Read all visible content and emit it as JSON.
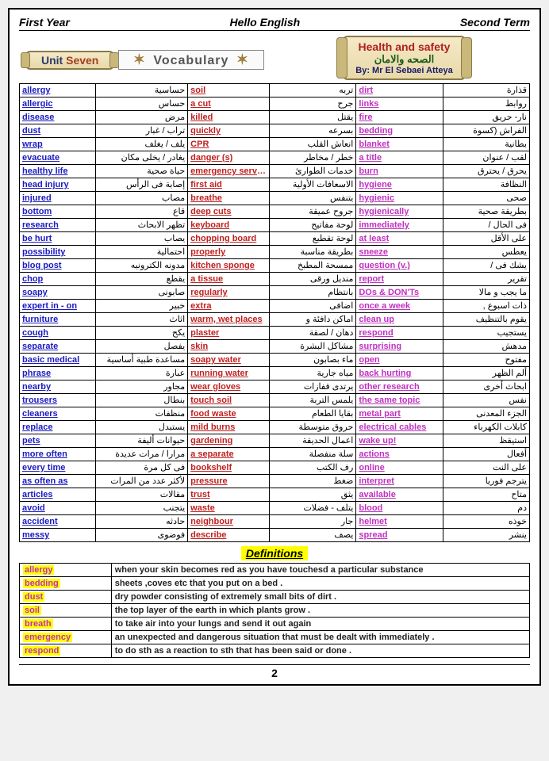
{
  "header": {
    "left": "First Year",
    "center": "Hello English",
    "right": "Second Term"
  },
  "unit": {
    "label": "Unit",
    "name": "Seven",
    "vocab": "Vocabulary"
  },
  "health": {
    "title": "Health and safety",
    "arabic": "الصحه والامان",
    "by": "By: Mr El Sebaei Atteya"
  },
  "defheader": "Definitions",
  "pagenum": "2",
  "vocab_rows": [
    {
      "e1": "allergy",
      "a1": "حساسية",
      "e2": "soil",
      "a2": "تربه",
      "e3": "dirt",
      "a3": "قذارة"
    },
    {
      "e1": "allergic",
      "a1": "حساس",
      "e2": "a cut",
      "a2": "جرح",
      "e3": "links",
      "a3": "روابط"
    },
    {
      "e1": "disease",
      "a1": "مرض",
      "e2": "killed",
      "a2": "يقتل",
      "e3": "fire",
      "a3": "نار- حريق"
    },
    {
      "e1": "dust",
      "a1": "تراب / غبار",
      "e2": "quickly",
      "a2": "بسرعه",
      "e3": "bedding",
      "a3": "الفراش (كسوة"
    },
    {
      "e1": "wrap",
      "a1": "يلف / يغلف",
      "e2": "CPR",
      "a2": "انعاش القلب",
      "e3": "blanket",
      "a3": "بطانية"
    },
    {
      "e1": "evacuate",
      "a1": "يغادر / يخلى مكان",
      "e2": "danger (s)",
      "a2": "خطر / مخاطر",
      "e3": "a title",
      "a3": "لقب / عنوان"
    },
    {
      "e1": "healthy life",
      "a1": "حياة صحية",
      "e2": "emergency services",
      "a2": "خدمات الطوارئ",
      "e3": "burn",
      "a3": "يحرق / يحترق"
    },
    {
      "e1": "head injury",
      "a1": "إصابة فى الرأس",
      "e2": "first aid",
      "a2": "الاسعافات الأولية",
      "e3": "hygiene",
      "a3": "النظافة"
    },
    {
      "e1": "injured",
      "a1": "مصاب",
      "e2": "breathe",
      "a2": "يتنفس",
      "e3": "hygienic",
      "a3": "صحى"
    },
    {
      "e1": "bottom",
      "a1": "قاع",
      "e2": "deep cuts",
      "a2": "جروح عميقة",
      "e3": "hygienically",
      "a3": "بطريقة صحية"
    },
    {
      "e1": "research",
      "a1": "تظهر الابحاث",
      "e2": "keyboard",
      "a2": "لوحة مفاتيح",
      "e3": "immediately",
      "a3": "فى الحال /"
    },
    {
      "e1": "be hurt",
      "a1": "يصاب",
      "e2": "chopping board",
      "a2": "لوحة تقطيع",
      "e3": "at least",
      "a3": "على الأقل"
    },
    {
      "e1": "possibility",
      "a1": "احتمالية",
      "e2": "properly",
      "a2": "بطريقة مناسبة",
      "e3": "sneeze",
      "a3": "يعطس"
    },
    {
      "e1": "blog post",
      "a1": "مدونه الكترونيه",
      "e2": "kitchen sponge",
      "a2": "ممسحة المطبخ",
      "e3": "question (v.)",
      "a3": "يشك فى /"
    },
    {
      "e1": "chop",
      "a1": "يقطع",
      "e2": "a tissue",
      "a2": "منديل ورقى",
      "e3": "report",
      "a3": "تقرير"
    },
    {
      "e1": "soapy",
      "a1": "صابونى",
      "e2": "regularly",
      "a2": "بانتظام",
      "e3": "DOs & DON'Ts",
      "a3": "ما يجب و مالا"
    },
    {
      "e1": "expert in - on",
      "a1": "خبير",
      "e2": "extra",
      "a2": "اضافى",
      "e3": "once a week",
      "a3": "ذات اسبوع ,"
    },
    {
      "e1": "furniture",
      "a1": "اثاث",
      "e2": "warm, wet places",
      "a2": "اماكن دافئة و",
      "e3": "clean up",
      "a3": "يقوم بالتنظيف"
    },
    {
      "e1": "cough",
      "a1": "يكح",
      "e2": "plaster",
      "a2": "دهان / لصقة",
      "e3": "respond",
      "a3": "يستجيب"
    },
    {
      "e1": "separate",
      "a1": "يفصل",
      "e2": "skin",
      "a2": "مشاكل البشرة",
      "e3": "surprising",
      "a3": "مدهش"
    },
    {
      "e1": "basic medical",
      "a1": "مساعدة طبية أساسية",
      "e2": "soapy water",
      "a2": "ماء بصابون",
      "e3": "open",
      "a3": "مفتوح"
    },
    {
      "e1": "phrase",
      "a1": "عبارة",
      "e2": "running water",
      "a2": "مياه جارية",
      "e3": "back hurting",
      "a3": "ألم الظهر"
    },
    {
      "e1": "nearby",
      "a1": "مجاور",
      "e2": "wear gloves",
      "a2": "يرتدى قفازات",
      "e3": "other research",
      "a3": "ابحاث أخرى"
    },
    {
      "e1": "trousers",
      "a1": "بنطال",
      "e2": "touch soil",
      "a2": "يلمس التربة",
      "e3": "the same topic",
      "a3": "نفس"
    },
    {
      "e1": "cleaners",
      "a1": "منظفات",
      "e2": "food waste",
      "a2": "بقايا الطعام",
      "e3": "metal part",
      "a3": "الجزء المعدنى"
    },
    {
      "e1": "replace",
      "a1": "يستبدل",
      "e2": "mild burns",
      "a2": "حروق متوسطة",
      "e3": "electrical cables",
      "a3": "كابلات الكهرباء"
    },
    {
      "e1": "pets",
      "a1": "حيوانات أليفة",
      "e2": "gardening",
      "a2": "اعمال الحديقة",
      "e3": "wake up!",
      "a3": "استيقظ"
    },
    {
      "e1": "more often",
      "a1": "مرارا / مرات عديدة",
      "e2": "a separate",
      "a2": "سلة منفصلة",
      "e3": "actions",
      "a3": "أفعال"
    },
    {
      "e1": "every time",
      "a1": "فى كل مرة",
      "e2": "bookshelf",
      "a2": "رف الكتب",
      "e3": "online",
      "a3": "على النت"
    },
    {
      "e1": "as often as",
      "a1": "لأكثر عدد من المرات",
      "e2": "pressure",
      "a2": "ضغط",
      "e3": "interpret",
      "a3": "يترجم فوريا"
    },
    {
      "e1": "articles",
      "a1": "مقالات",
      "e2": "trust",
      "a2": "يثق",
      "e3": "available",
      "a3": "متاح"
    },
    {
      "e1": "avoid",
      "a1": "يتجنب",
      "e2": "waste",
      "a2": "يتلف - فضلات",
      "e3": "blood",
      "a3": "دم"
    },
    {
      "e1": "accident",
      "a1": "حادثه",
      "e2": "neighbour",
      "a2": "جار",
      "e3": "helmet",
      "a3": "خوذه"
    },
    {
      "e1": "messy",
      "a1": "فوضوى",
      "e2": "describe",
      "a2": "يصف",
      "e3": "spread",
      "a3": "ينشر"
    }
  ],
  "definitions": [
    {
      "term": "allergy",
      "text": "when your skin becomes red as you have touchesd a particular substance"
    },
    {
      "term": "bedding",
      "text": "sheets ,coves etc that you put on a bed ."
    },
    {
      "term": "dust",
      "text": "dry powder consisting of extremely small bits of dirt ."
    },
    {
      "term": "soil",
      "text": "the top layer of the earth in which plants grow ."
    },
    {
      "term": "breath",
      "text": "to take air into your lungs and send it out again"
    },
    {
      "term": "emergency",
      "text": "an unexpected and dangerous situation that must be dealt with immediately ."
    },
    {
      "term": "respond",
      "text": "to do sth as a reaction to sth that has been said or done ."
    }
  ]
}
